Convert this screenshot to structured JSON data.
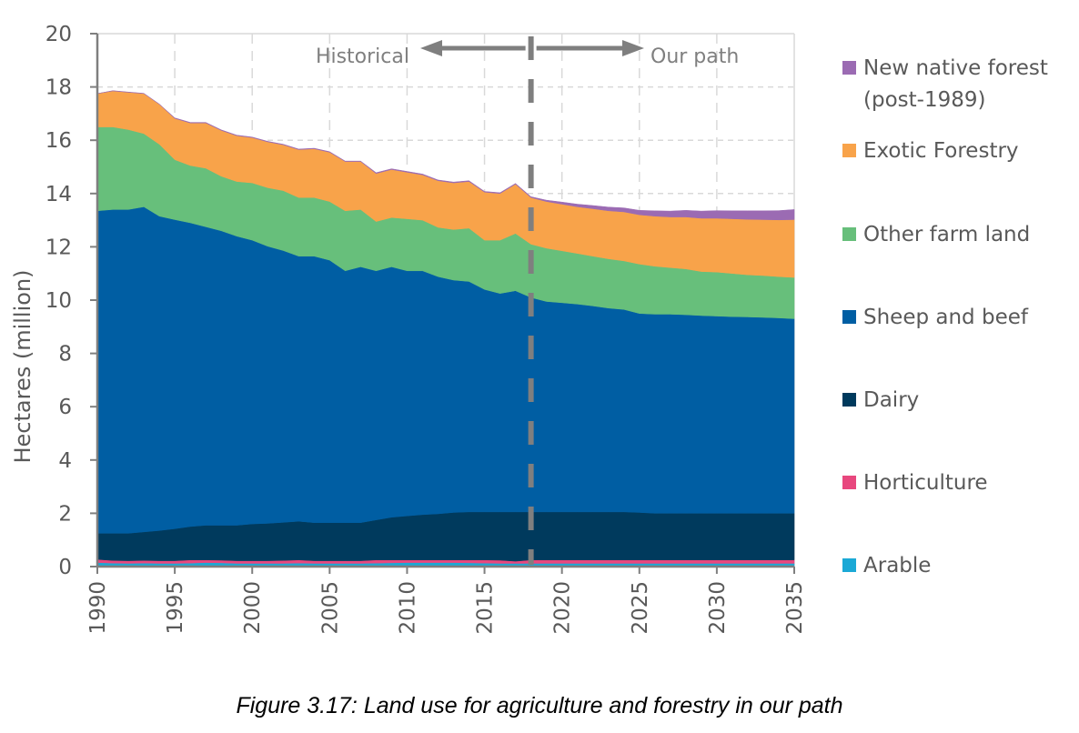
{
  "chart_data": {
    "type": "area",
    "stacked": true,
    "title": "",
    "xlabel": "",
    "ylabel": "Hectares (million)",
    "xlim": [
      1990,
      2035
    ],
    "ylim": [
      0,
      20
    ],
    "yticks": [
      0,
      2,
      4,
      6,
      8,
      10,
      12,
      14,
      16,
      18,
      20
    ],
    "xticks": [
      1990,
      1995,
      2000,
      2005,
      2010,
      2015,
      2020,
      2025,
      2030,
      2035
    ],
    "grid": true,
    "legend_position": "right",
    "annotations": {
      "divider_year": 2018,
      "left_label": "Historical",
      "right_label": "Our path"
    },
    "x": [
      1990,
      1991,
      1992,
      1993,
      1994,
      1995,
      1996,
      1997,
      1998,
      1999,
      2000,
      2001,
      2002,
      2003,
      2004,
      2005,
      2006,
      2007,
      2008,
      2009,
      2010,
      2011,
      2012,
      2013,
      2014,
      2015,
      2016,
      2017,
      2018,
      2019,
      2020,
      2021,
      2022,
      2023,
      2024,
      2025,
      2026,
      2027,
      2028,
      2029,
      2030,
      2031,
      2032,
      2033,
      2034,
      2035
    ],
    "series": [
      {
        "name": "Arable",
        "color": "#1ba9d6",
        "values": [
          0.15,
          0.13,
          0.12,
          0.13,
          0.12,
          0.12,
          0.13,
          0.15,
          0.14,
          0.12,
          0.12,
          0.12,
          0.12,
          0.13,
          0.12,
          0.12,
          0.12,
          0.12,
          0.13,
          0.14,
          0.15,
          0.15,
          0.15,
          0.15,
          0.14,
          0.13,
          0.12,
          0.12,
          0.12,
          0.12,
          0.12,
          0.12,
          0.12,
          0.12,
          0.12,
          0.12,
          0.12,
          0.12,
          0.12,
          0.12,
          0.12,
          0.12,
          0.12,
          0.12,
          0.12,
          0.12
        ]
      },
      {
        "name": "Horticulture",
        "color": "#e8477e",
        "values": [
          0.12,
          0.1,
          0.1,
          0.1,
          0.1,
          0.1,
          0.12,
          0.1,
          0.1,
          0.1,
          0.1,
          0.1,
          0.11,
          0.12,
          0.1,
          0.1,
          0.1,
          0.1,
          0.12,
          0.11,
          0.1,
          0.1,
          0.1,
          0.1,
          0.11,
          0.12,
          0.12,
          0.08,
          0.13,
          0.13,
          0.13,
          0.13,
          0.13,
          0.13,
          0.13,
          0.13,
          0.13,
          0.13,
          0.13,
          0.13,
          0.13,
          0.13,
          0.13,
          0.13,
          0.13,
          0.13
        ]
      },
      {
        "name": "Dairy",
        "color": "#003a5d",
        "values": [
          0.98,
          1.02,
          1.03,
          1.07,
          1.13,
          1.2,
          1.25,
          1.3,
          1.31,
          1.33,
          1.38,
          1.4,
          1.43,
          1.45,
          1.43,
          1.43,
          1.43,
          1.43,
          1.5,
          1.6,
          1.65,
          1.7,
          1.73,
          1.78,
          1.8,
          1.8,
          1.81,
          1.85,
          1.8,
          1.8,
          1.8,
          1.8,
          1.8,
          1.8,
          1.8,
          1.78,
          1.75,
          1.75,
          1.75,
          1.75,
          1.75,
          1.75,
          1.75,
          1.75,
          1.75,
          1.75
        ]
      },
      {
        "name": "Sheep and beef",
        "color": "#005ea3",
        "values": [
          12.1,
          12.15,
          12.15,
          12.2,
          11.8,
          11.6,
          11.4,
          11.2,
          11.05,
          10.85,
          10.65,
          10.4,
          10.2,
          9.95,
          10.0,
          9.85,
          9.45,
          9.6,
          9.35,
          9.4,
          9.2,
          9.15,
          8.9,
          8.72,
          8.65,
          8.35,
          8.2,
          8.3,
          8.05,
          7.9,
          7.85,
          7.8,
          7.73,
          7.65,
          7.6,
          7.47,
          7.47,
          7.47,
          7.45,
          7.42,
          7.4,
          7.38,
          7.37,
          7.35,
          7.33,
          7.3
        ]
      },
      {
        "name": "Other farm land",
        "color": "#67bf7b",
        "values": [
          3.15,
          3.1,
          3.0,
          2.75,
          2.7,
          2.25,
          2.15,
          2.2,
          2.05,
          2.05,
          2.15,
          2.2,
          2.25,
          2.2,
          2.2,
          2.2,
          2.25,
          2.15,
          1.85,
          1.85,
          1.95,
          1.9,
          1.85,
          1.9,
          2.0,
          1.85,
          2.0,
          2.15,
          2.0,
          2.0,
          1.95,
          1.9,
          1.87,
          1.85,
          1.82,
          1.85,
          1.8,
          1.75,
          1.72,
          1.65,
          1.65,
          1.62,
          1.58,
          1.57,
          1.55,
          1.55
        ]
      },
      {
        "name": "Exotic Forestry",
        "color": "#f8a34a",
        "values": [
          1.25,
          1.35,
          1.4,
          1.5,
          1.5,
          1.55,
          1.6,
          1.7,
          1.72,
          1.72,
          1.7,
          1.72,
          1.72,
          1.8,
          1.83,
          1.85,
          1.85,
          1.8,
          1.8,
          1.8,
          1.75,
          1.7,
          1.75,
          1.75,
          1.75,
          1.8,
          1.75,
          1.85,
          1.75,
          1.75,
          1.75,
          1.75,
          1.78,
          1.8,
          1.84,
          1.85,
          1.88,
          1.9,
          1.95,
          2.0,
          2.02,
          2.05,
          2.08,
          2.1,
          2.13,
          2.17
        ]
      },
      {
        "name": "New native forest (post-1989)",
        "color": "#9b6bb3",
        "values": [
          0.0,
          0.01,
          0.01,
          0.01,
          0.01,
          0.02,
          0.02,
          0.02,
          0.02,
          0.02,
          0.02,
          0.02,
          0.02,
          0.02,
          0.02,
          0.02,
          0.02,
          0.02,
          0.03,
          0.03,
          0.03,
          0.03,
          0.03,
          0.03,
          0.03,
          0.03,
          0.03,
          0.03,
          0.03,
          0.05,
          0.08,
          0.1,
          0.12,
          0.14,
          0.15,
          0.17,
          0.2,
          0.22,
          0.25,
          0.27,
          0.29,
          0.3,
          0.32,
          0.33,
          0.35,
          0.38
        ]
      }
    ]
  },
  "legend": [
    {
      "label": "New native forest (post-1989)",
      "color": "#9b6bb3"
    },
    {
      "label": "Exotic Forestry",
      "color": "#f8a34a"
    },
    {
      "label": "Other farm land",
      "color": "#67bf7b"
    },
    {
      "label": "Sheep and beef",
      "color": "#005ea3"
    },
    {
      "label": "Dairy",
      "color": "#003a5d"
    },
    {
      "label": "Horticulture",
      "color": "#e8477e"
    },
    {
      "label": "Arable",
      "color": "#1ba9d6"
    }
  ],
  "caption": "Figure 3.17: Land use for agriculture and forestry in our path",
  "colors": {
    "axis": "#7f7f7f",
    "grid": "#d9d9d9",
    "divider": "#7f7f7f"
  }
}
